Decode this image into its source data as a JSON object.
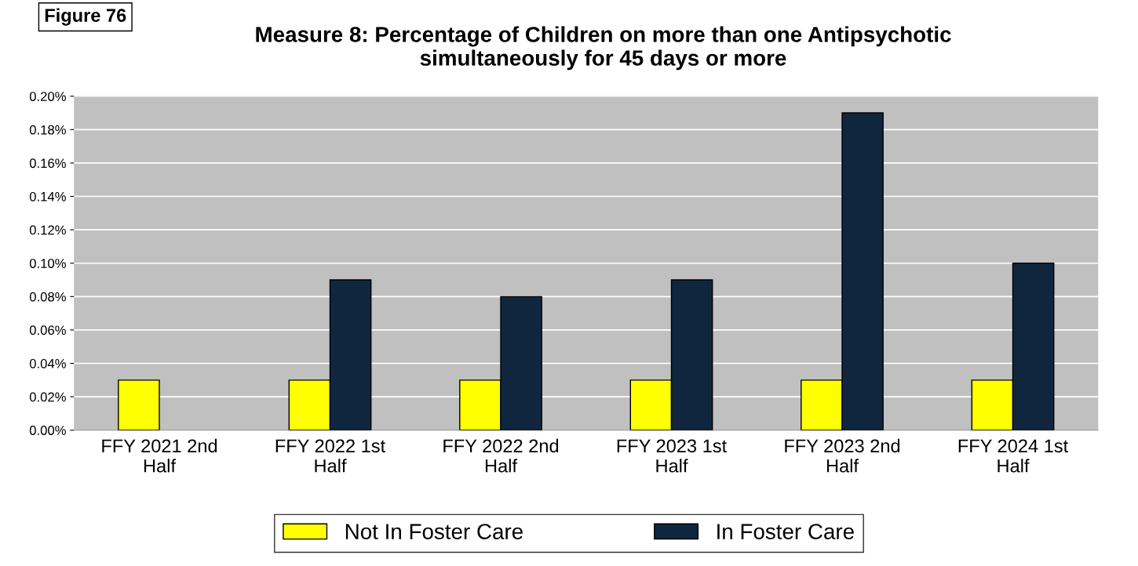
{
  "chart_data": {
    "type": "bar",
    "title": "Measure 8: Percentage of Children on more than one Antipsychotic\nsimultaneously for 45 days or more",
    "annotations": [
      "Figure 76"
    ],
    "categories": [
      "FFY 2021 2nd\nHalf",
      "FFY 2022 1st\nHalf",
      "FFY 2022 2nd\nHalf",
      "FFY 2023 1st\nHalf",
      "FFY 2023 2nd\nHalf",
      "FFY 2024 1st\nHalf"
    ],
    "series": [
      {
        "name": "Not In Foster Care",
        "color": "#ffff00",
        "values": [
          0.03,
          0.03,
          0.03,
          0.03,
          0.03,
          0.03
        ]
      },
      {
        "name": "In Foster Care",
        "color": "#10263f",
        "values": [
          null,
          0.09,
          0.08,
          0.09,
          0.19,
          0.1
        ]
      }
    ],
    "ylim": [
      0,
      0.2
    ],
    "yticks": [
      {
        "value": 0,
        "label": "0.00%"
      },
      {
        "value": 0.02,
        "label": "0.02%"
      },
      {
        "value": 0.04,
        "label": "0.04%"
      },
      {
        "value": 0.06,
        "label": "0.06%"
      },
      {
        "value": 0.08,
        "label": "0.08%"
      },
      {
        "value": 0.1,
        "label": "0.10%"
      },
      {
        "value": 0.12,
        "label": "0.12%"
      },
      {
        "value": 0.14,
        "label": "0.14%"
      },
      {
        "value": 0.16,
        "label": "0.16%"
      },
      {
        "value": 0.18,
        "label": "0.18%"
      },
      {
        "value": 0.2,
        "label": "0.20%"
      }
    ],
    "grid": "y",
    "legend": "bottom"
  }
}
